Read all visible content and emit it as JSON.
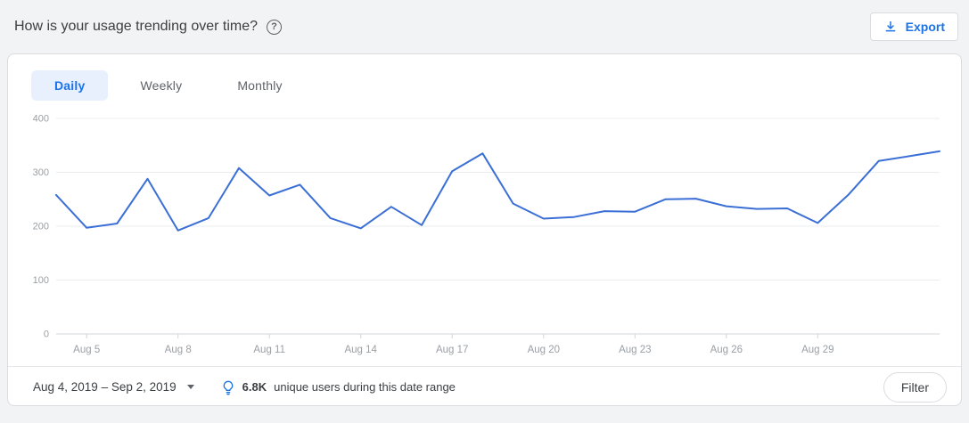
{
  "header": {
    "title": "How is your usage trending over time?",
    "export_label": "Export"
  },
  "tabs": [
    {
      "label": "Daily",
      "active": true
    },
    {
      "label": "Weekly",
      "active": false
    },
    {
      "label": "Monthly",
      "active": false
    }
  ],
  "chart_data": {
    "type": "line",
    "title": "Daily usage trend",
    "x": [
      "Aug 4",
      "Aug 5",
      "Aug 6",
      "Aug 7",
      "Aug 8",
      "Aug 9",
      "Aug 10",
      "Aug 11",
      "Aug 12",
      "Aug 13",
      "Aug 14",
      "Aug 15",
      "Aug 16",
      "Aug 17",
      "Aug 18",
      "Aug 19",
      "Aug 20",
      "Aug 21",
      "Aug 22",
      "Aug 23",
      "Aug 24",
      "Aug 25",
      "Aug 26",
      "Aug 27",
      "Aug 28",
      "Aug 29",
      "Aug 30",
      "Aug 31",
      "Sep 1",
      "Sep 2"
    ],
    "values": [
      258,
      197,
      205,
      288,
      192,
      215,
      308,
      257,
      277,
      215,
      196,
      236,
      202,
      302,
      335,
      242,
      214,
      217,
      228,
      227,
      250,
      251,
      237,
      232,
      233,
      206,
      258,
      321,
      330,
      339
    ],
    "x_tick_labels": [
      "Aug 5",
      "Aug 8",
      "Aug 11",
      "Aug 14",
      "Aug 17",
      "Aug 20",
      "Aug 23",
      "Aug 26",
      "Aug 29"
    ],
    "y_ticks": [
      0,
      100,
      200,
      300,
      400
    ],
    "ylim": [
      0,
      400
    ],
    "grid": true,
    "legend": "none",
    "line_color": "#3b6fd6",
    "grid_color": "#ebedef",
    "baseline_color": "#d2d5d9",
    "axis_label_color": "#9aa0a6"
  },
  "footer": {
    "date_range": "Aug 4, 2019 – Sep 2, 2019",
    "insight_value": "6.8K",
    "insight_text": "unique users during this date range",
    "filter_label": "Filter"
  },
  "colors": {
    "accent": "#1a73e8",
    "page_background": "#f1f3f4"
  }
}
